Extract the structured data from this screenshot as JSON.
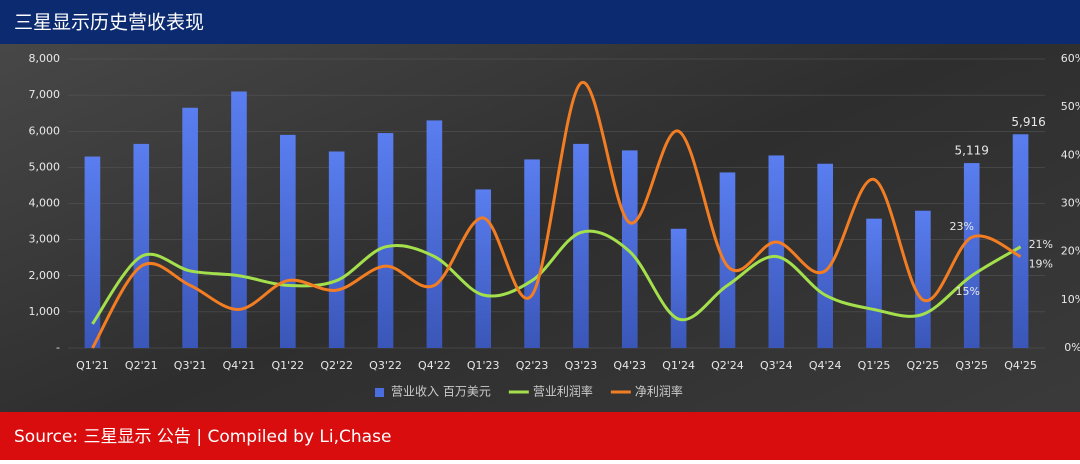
{
  "chart_data": {
    "type": "bar",
    "title": "三星显示历史营收表现",
    "source": "Source: 三星显示 公告 | Compiled by Li,Chase",
    "categories": [
      "Q1'21",
      "Q2'21",
      "Q3'21",
      "Q4'21",
      "Q1'22",
      "Q2'22",
      "Q3'22",
      "Q4'22",
      "Q1'23",
      "Q2'23",
      "Q3'23",
      "Q4'23",
      "Q1'24",
      "Q2'24",
      "Q3'24",
      "Q4'24",
      "Q1'25",
      "Q2'25",
      "Q3'25",
      "Q4'25"
    ],
    "series": [
      {
        "name": "营业收入 百万美元",
        "type": "bar",
        "color": "#4a6ee0",
        "values": [
          5300,
          5650,
          6650,
          7100,
          5900,
          5440,
          5950,
          6300,
          4390,
          5220,
          5650,
          5470,
          3300,
          4860,
          5330,
          5100,
          3580,
          3800,
          5119,
          5916
        ],
        "value_labels": [
          null,
          null,
          null,
          null,
          null,
          null,
          null,
          null,
          null,
          null,
          null,
          null,
          null,
          null,
          null,
          null,
          null,
          null,
          "5,119",
          "5,916"
        ]
      },
      {
        "name": "营业利润率",
        "type": "line",
        "axis": "y2",
        "color": "#a4e04c",
        "values": [
          5,
          19,
          16,
          15,
          13,
          14,
          21,
          19,
          11,
          14,
          24,
          20,
          6,
          13,
          19,
          11,
          8,
          7,
          15,
          21
        ],
        "value_labels": [
          null,
          null,
          null,
          null,
          null,
          null,
          null,
          null,
          null,
          null,
          null,
          null,
          null,
          null,
          null,
          null,
          null,
          null,
          "15%",
          "21%"
        ]
      },
      {
        "name": "净利润率",
        "type": "line",
        "axis": "y2",
        "color": "#f27d22",
        "values": [
          0,
          17,
          13,
          8,
          14,
          12,
          17,
          13,
          27,
          11,
          55,
          26,
          45,
          17,
          22,
          16,
          35,
          10,
          23,
          19
        ],
        "value_labels": [
          null,
          null,
          null,
          null,
          null,
          null,
          null,
          null,
          null,
          null,
          null,
          null,
          null,
          null,
          null,
          null,
          null,
          null,
          "23%",
          "19%"
        ]
      }
    ],
    "ylim": [
      0,
      8000
    ],
    "yticks": [
      {
        "value": 0,
        "label": "-"
      },
      {
        "value": 1000,
        "label": "1,000"
      },
      {
        "value": 2000,
        "label": "2,000"
      },
      {
        "value": 3000,
        "label": "3,000"
      },
      {
        "value": 4000,
        "label": "4,000"
      },
      {
        "value": 5000,
        "label": "5,000"
      },
      {
        "value": 6000,
        "label": "6,000"
      },
      {
        "value": 7000,
        "label": "7,000"
      },
      {
        "value": 8000,
        "label": "8,000"
      }
    ],
    "y2lim": [
      0,
      60
    ],
    "y2ticks": [
      {
        "value": 0,
        "label": "0%"
      },
      {
        "value": 10,
        "label": "10%"
      },
      {
        "value": 20,
        "label": "20%"
      },
      {
        "value": 30,
        "label": "30%"
      },
      {
        "value": 40,
        "label": "40%"
      },
      {
        "value": 50,
        "label": "50%"
      },
      {
        "value": 60,
        "label": "60%"
      }
    ],
    "grid": true,
    "legend": "bottom"
  }
}
